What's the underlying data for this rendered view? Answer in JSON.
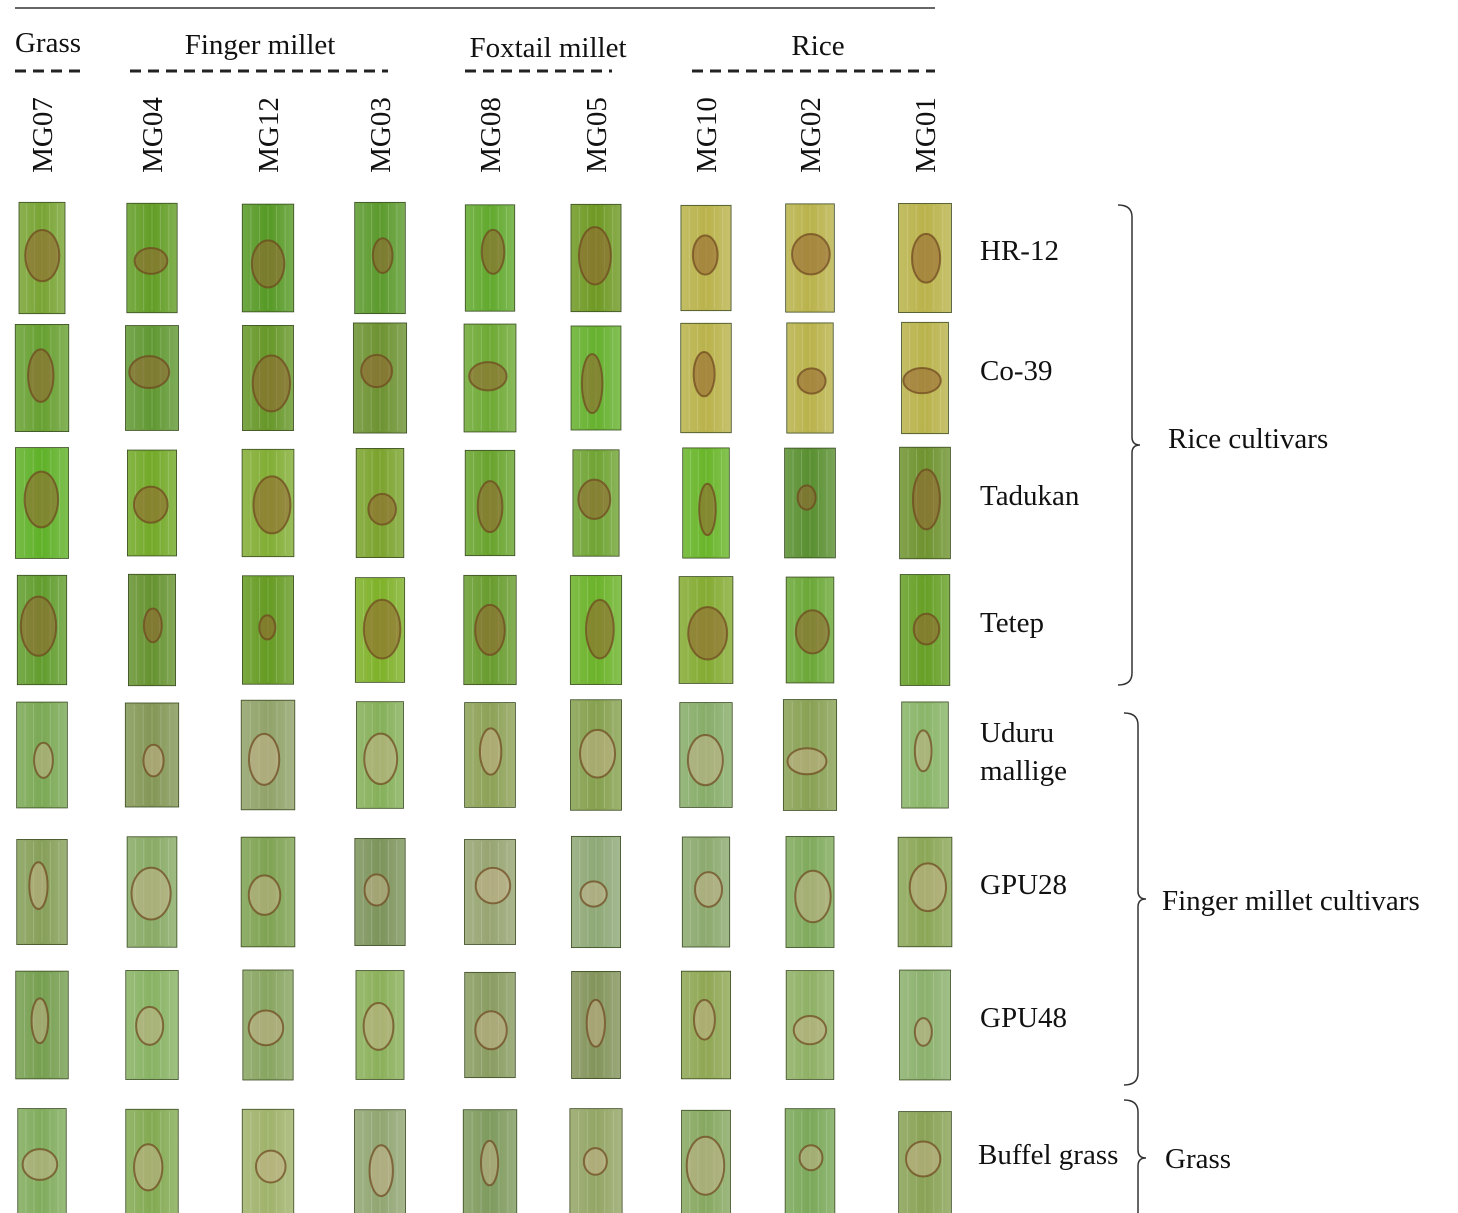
{
  "groups": [
    {
      "label": "Grass"
    },
    {
      "label": "Finger millet"
    },
    {
      "label": "Foxtail millet"
    },
    {
      "label": "Rice"
    }
  ],
  "columns": [
    "MG07",
    "MG04",
    "MG12",
    "MG03",
    "MG08",
    "MG05",
    "MG10",
    "MG02",
    "MG01"
  ],
  "rows": [
    {
      "label": "HR-12"
    },
    {
      "label": "Co-39"
    },
    {
      "label": "Tadukan"
    },
    {
      "label": "Tetep"
    },
    {
      "label": "Uduru mallige"
    },
    {
      "label": "GPU28"
    },
    {
      "label": "GPU48"
    },
    {
      "label": "Buffel grass"
    }
  ],
  "row_groups": [
    {
      "label": "Rice cultivars"
    },
    {
      "label": "Finger millet cultivars"
    },
    {
      "label": "Grass"
    }
  ]
}
